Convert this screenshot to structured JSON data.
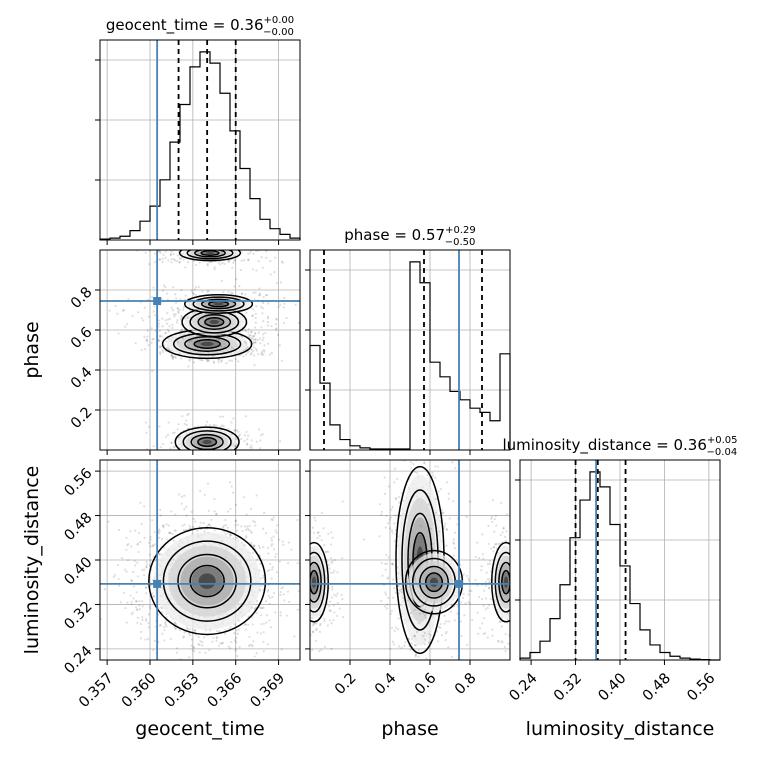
{
  "chart_data": {
    "type": "corner",
    "parameters": [
      {
        "key": "geocent_time",
        "label": "geocent_time",
        "title_prefix": "geocent_time = ",
        "median": "0.36",
        "plus": "+0.00",
        "minus": "−0.00",
        "truth": 0.3605,
        "range": [
          0.3565,
          0.3705
        ],
        "ticks": [
          0.357,
          0.36,
          0.363,
          0.366,
          0.369
        ],
        "tick_labels": [
          "0.357",
          "0.360",
          "0.363",
          "0.366",
          "0.369"
        ],
        "quantiles": [
          0.362,
          0.364,
          0.366
        ]
      },
      {
        "key": "phase",
        "label": "phase",
        "title_prefix": "phase = ",
        "median": "0.57",
        "plus": "+0.29",
        "minus": "−0.50",
        "truth": 0.745,
        "range": [
          0.0,
          1.0
        ],
        "ticks": [
          0.2,
          0.4,
          0.6,
          0.8
        ],
        "tick_labels": [
          "0.2",
          "0.4",
          "0.6",
          "0.8"
        ],
        "quantiles": [
          0.07,
          0.57,
          0.86
        ]
      },
      {
        "key": "luminosity_distance",
        "label": "luminosity_distance",
        "title_prefix": "luminosity_distance = ",
        "median": "0.36",
        "plus": "+0.05",
        "minus": "−0.04",
        "truth": 0.357,
        "range": [
          0.22,
          0.58
        ],
        "ticks": [
          0.24,
          0.32,
          0.4,
          0.48,
          0.56
        ],
        "tick_labels": [
          "0.24",
          "0.32",
          "0.40",
          "0.48",
          "0.56"
        ],
        "quantiles": [
          0.32,
          0.36,
          0.41
        ]
      }
    ],
    "histograms": {
      "geocent_time": {
        "bins": [
          0.3565,
          0.3572,
          0.3579,
          0.3586,
          0.3593,
          0.36,
          0.3607,
          0.3614,
          0.3621,
          0.3628,
          0.3635,
          0.3642,
          0.3649,
          0.3656,
          0.3663,
          0.367,
          0.3677,
          0.3684,
          0.3691,
          0.3698,
          0.3705
        ],
        "counts": [
          0.005,
          0.01,
          0.02,
          0.05,
          0.1,
          0.18,
          0.32,
          0.52,
          0.72,
          0.92,
          1.0,
          0.94,
          0.78,
          0.58,
          0.38,
          0.22,
          0.11,
          0.06,
          0.03,
          0.01
        ]
      },
      "phase": {
        "bins": [
          0.0,
          0.05,
          0.1,
          0.15,
          0.2,
          0.25,
          0.3,
          0.35,
          0.4,
          0.45,
          0.5,
          0.55,
          0.6,
          0.65,
          0.7,
          0.75,
          0.8,
          0.85,
          0.9,
          0.95,
          1.0
        ],
        "counts": [
          0.5,
          0.32,
          0.12,
          0.05,
          0.02,
          0.01,
          0.005,
          0.005,
          0.005,
          0.005,
          0.9,
          0.8,
          0.42,
          0.35,
          0.28,
          0.24,
          0.2,
          0.18,
          0.14,
          0.46
        ]
      },
      "luminosity_distance": {
        "bins": [
          0.22,
          0.238,
          0.256,
          0.274,
          0.292,
          0.31,
          0.328,
          0.346,
          0.364,
          0.382,
          0.4,
          0.418,
          0.436,
          0.454,
          0.472,
          0.49,
          0.508,
          0.526,
          0.544,
          0.562,
          0.58
        ],
        "counts": [
          0.01,
          0.04,
          0.1,
          0.22,
          0.4,
          0.65,
          0.85,
          1.0,
          0.92,
          0.72,
          0.5,
          0.3,
          0.16,
          0.08,
          0.04,
          0.02,
          0.01,
          0.005,
          0.002,
          0.0
        ]
      }
    },
    "density_blobs": [
      {
        "panel": "phase-vs-geocent_time",
        "blobs": [
          {
            "x": 0.364,
            "y": 0.53,
            "sx": 0.0013,
            "sy": 0.03,
            "w": 1.0
          },
          {
            "x": 0.3645,
            "y": 0.64,
            "sx": 0.0014,
            "sy": 0.045,
            "w": 0.45
          },
          {
            "x": 0.3648,
            "y": 0.73,
            "sx": 0.0018,
            "sy": 0.035,
            "w": 0.3
          },
          {
            "x": 0.3642,
            "y": 0.985,
            "sx": 0.0014,
            "sy": 0.025,
            "w": 0.4
          },
          {
            "x": 0.364,
            "y": 0.04,
            "sx": 0.0012,
            "sy": 0.04,
            "w": 0.6
          }
        ]
      },
      {
        "panel": "luminosity_distance-vs-geocent_time",
        "blobs": [
          {
            "x": 0.364,
            "y": 0.362,
            "sx": 0.0017,
            "sy": 0.04,
            "w": 1.0
          }
        ]
      },
      {
        "panel": "luminosity_distance-vs-phase",
        "blobs": [
          {
            "x": 0.55,
            "y": 0.4,
            "sx": 0.05,
            "sy": 0.07,
            "w": 1.0
          },
          {
            "x": 0.62,
            "y": 0.36,
            "sx": 0.1,
            "sy": 0.04,
            "w": 0.35
          },
          {
            "x": 0.02,
            "y": 0.36,
            "sx": 0.04,
            "sy": 0.04,
            "w": 0.55
          },
          {
            "x": 0.98,
            "y": 0.36,
            "sx": 0.04,
            "sy": 0.04,
            "w": 0.55
          }
        ]
      }
    ],
    "grid": true,
    "truth_color": "#4682b4",
    "line_color": "#000000"
  }
}
